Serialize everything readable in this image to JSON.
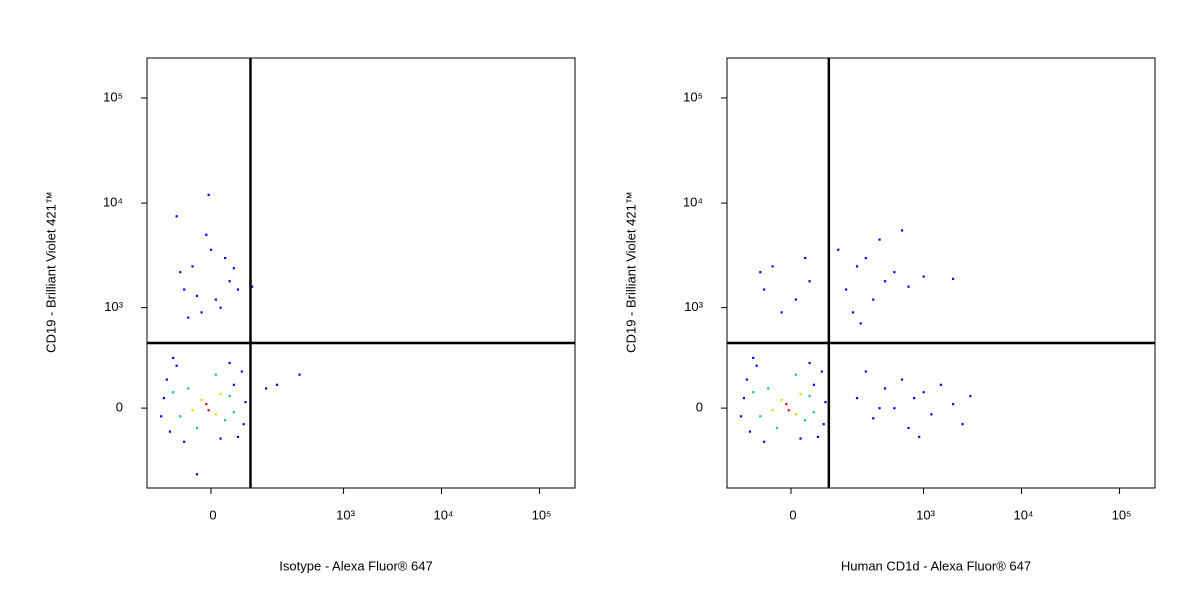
{
  "chart_data": [
    {
      "type": "scatter",
      "x_label": "Isotype - Alexa Fluor® 647",
      "y_label": "CD19 - Brilliant Violet 421™",
      "scale": "biexponential",
      "xlim": [
        -190,
        230000
      ],
      "ylim": [
        -625,
        240000
      ],
      "xticks": [
        0,
        {
          "value": 1000,
          "label": "10³"
        },
        {
          "value": 10000,
          "label": "10⁴"
        },
        {
          "value": 100000,
          "label": "10⁵"
        }
      ],
      "yticks": [
        0,
        {
          "value": 1000,
          "label": "10³"
        },
        {
          "value": 10000,
          "label": "10⁴"
        },
        {
          "value": 100000,
          "label": "10⁵"
        }
      ],
      "gates": {
        "x": 95,
        "y": 440
      },
      "series": [
        {
          "color": "#0000ff",
          "x": [
            -120,
            -100,
            70,
            60,
            -80,
            -130,
            40,
            80,
            -60,
            20,
            -110,
            75,
            -90,
            50,
            -60,
            -40,
            10,
            30,
            -20,
            40,
            -70,
            0,
            20,
            -30,
            50,
            -50,
            60,
            -10,
            -80,
            -5,
            100,
            200,
            350,
            150,
            -30
          ],
          "y": [
            50,
            -120,
            200,
            -150,
            240,
            -40,
            260,
            30,
            -180,
            -160,
            150,
            -80,
            300,
            120,
            1500,
            2500,
            1200,
            3000,
            900,
            1800,
            2200,
            3600,
            1000,
            1300,
            2400,
            800,
            1500,
            5000,
            7500,
            12000,
            1600,
            120,
            180,
            100,
            -450
          ]
        },
        {
          "color": "#00c8a0",
          "x": [
            -50,
            30,
            -70,
            10,
            40,
            -30,
            -90,
            50
          ],
          "y": [
            100,
            -60,
            -40,
            180,
            60,
            -100,
            80,
            -20
          ]
        },
        {
          "color": "#d8e000",
          "x": [
            -20,
            10,
            -40,
            20
          ],
          "y": [
            40,
            -30,
            -10,
            70
          ]
        },
        {
          "color": "#ff0000",
          "x": [
            -10,
            -5
          ],
          "y": [
            20,
            -10
          ]
        }
      ]
    },
    {
      "type": "scatter",
      "x_label": "Human CD1d - Alexa Fluor® 647",
      "y_label": "CD19 - Brilliant Violet 421™",
      "scale": "biexponential",
      "xlim": [
        -190,
        230000
      ],
      "ylim": [
        -625,
        240000
      ],
      "xticks": [
        0,
        {
          "value": 1000,
          "label": "10³"
        },
        {
          "value": 10000,
          "label": "10⁴"
        },
        {
          "value": 100000,
          "label": "10⁵"
        }
      ],
      "yticks": [
        0,
        {
          "value": 1000,
          "label": "10³"
        },
        {
          "value": 10000,
          "label": "10⁴"
        },
        {
          "value": 100000,
          "label": "10⁵"
        }
      ],
      "gates": {
        "x": 90,
        "y": 440
      },
      "series": [
        {
          "color": "#0000ff",
          "x": [
            -120,
            -100,
            70,
            60,
            -80,
            -130,
            40,
            80,
            -60,
            20,
            -110,
            75,
            -90,
            50,
            -60,
            -40,
            10,
            30,
            -20,
            40,
            -70,
            150,
            200,
            300,
            250,
            400,
            180,
            500,
            120,
            350,
            600,
            700,
            1000,
            2000,
            90,
            220,
            200,
            300,
            400,
            500,
            600,
            700,
            800,
            1000,
            1200,
            1500,
            2000,
            2500,
            3000,
            250,
            900,
            350
          ],
          "y": [
            50,
            -120,
            200,
            -150,
            240,
            -40,
            260,
            30,
            -180,
            -160,
            150,
            -80,
            300,
            120,
            1500,
            2500,
            1200,
            3000,
            900,
            1800,
            2200,
            1500,
            2500,
            1200,
            3000,
            1800,
            900,
            2200,
            3600,
            4500,
            5500,
            1600,
            2000,
            1900,
            1000,
            700,
            50,
            -50,
            100,
            0,
            150,
            -100,
            50,
            80,
            -30,
            120,
            20,
            -80,
            60,
            200,
            -150,
            0
          ]
        },
        {
          "color": "#00c8a0",
          "x": [
            -50,
            30,
            -70,
            10,
            40,
            -30,
            -90,
            50
          ],
          "y": [
            100,
            -60,
            -40,
            180,
            60,
            -100,
            80,
            -20
          ]
        },
        {
          "color": "#d8e000",
          "x": [
            -20,
            10,
            -40,
            20
          ],
          "y": [
            40,
            -30,
            -10,
            70
          ]
        },
        {
          "color": "#ff0000",
          "x": [
            -10,
            -5
          ],
          "y": [
            20,
            -10
          ]
        }
      ]
    }
  ]
}
